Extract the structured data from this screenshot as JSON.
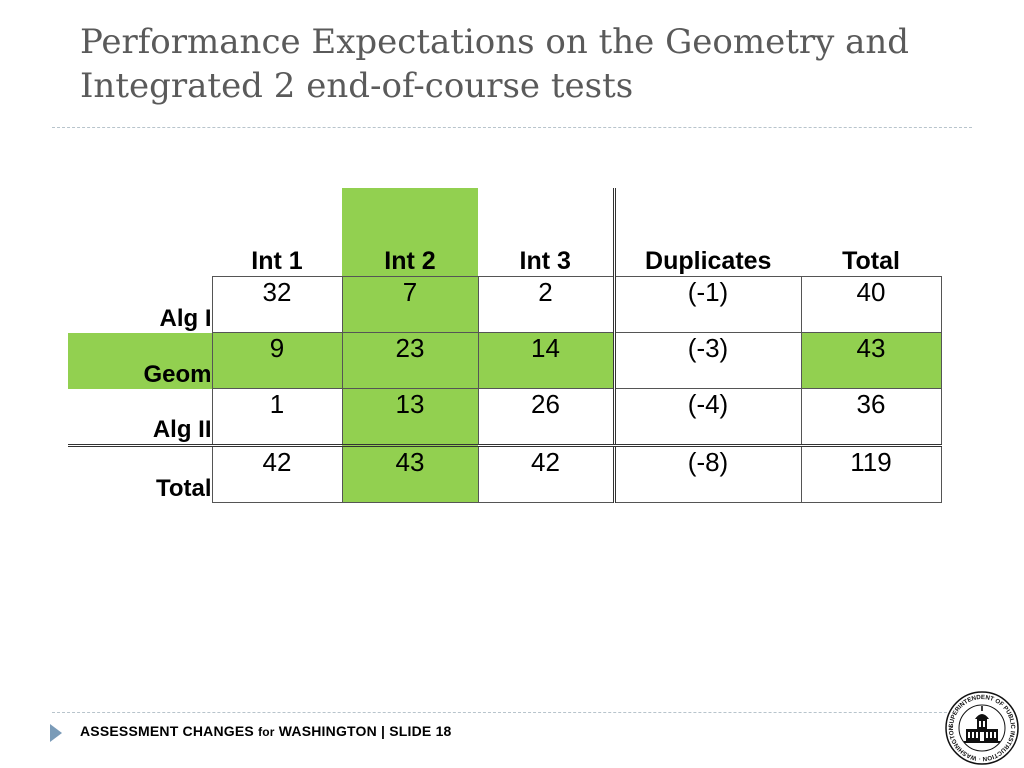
{
  "slide": {
    "title": "Performance Expectations on the Geometry and Integrated 2 end-of-course tests"
  },
  "table": {
    "headers": [
      "Int 1",
      "Int 2",
      "Int 3",
      "Duplicates",
      "Total"
    ],
    "rows": [
      {
        "label": "Alg I",
        "values": [
          "32",
          "7",
          "2",
          "(-1)",
          "40"
        ]
      },
      {
        "label": "Geom",
        "values": [
          "9",
          "23",
          "14",
          "(-3)",
          "43"
        ]
      },
      {
        "label": "Alg II",
        "values": [
          "1",
          "13",
          "26",
          "(-4)",
          "36"
        ]
      },
      {
        "label": "Total",
        "values": [
          "42",
          "43",
          "42",
          "(-8)",
          "119"
        ]
      }
    ],
    "highlight_color": "#92d050"
  },
  "footer": {
    "text_a": "ASSESSMENT CHANGES ",
    "text_for": "for",
    "text_b": " WASHINGTON  |  SLIDE 18"
  },
  "logo": {
    "name": "superintendent-of-public-instruction-seal",
    "ring_text": "SUPERINTENDENT OF PUBLIC INSTRUCTION · WASHINGTON ·"
  }
}
